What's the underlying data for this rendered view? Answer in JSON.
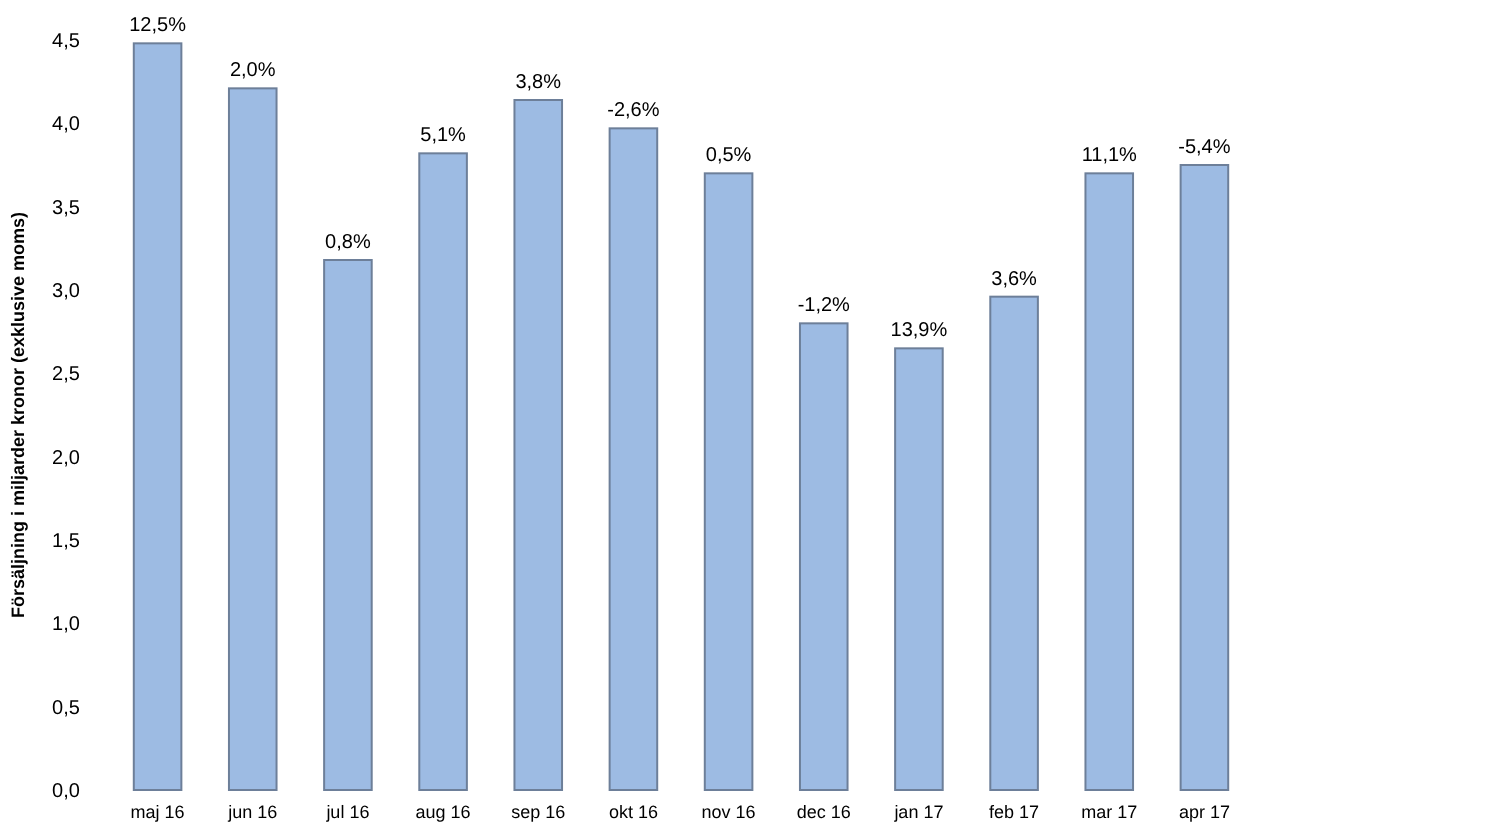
{
  "chart_data": {
    "type": "bar",
    "ylabel": "Försäljning i miljarder kronor (exklusive moms)",
    "categories": [
      "maj 16",
      "jun 16",
      "jul 16",
      "aug 16",
      "sep 16",
      "okt 16",
      "nov 16",
      "dec 16",
      "jan 17",
      "feb 17",
      "mar 17",
      "apr 17"
    ],
    "values": [
      4.48,
      4.21,
      3.18,
      3.82,
      4.14,
      3.97,
      3.7,
      2.8,
      2.65,
      2.96,
      3.7,
      3.75
    ],
    "annotations": [
      {
        "text": "12,5%",
        "x": "maj 16",
        "y": 4.48
      },
      {
        "text": "2,0%",
        "x": "jun 16",
        "y": 4.21
      },
      {
        "text": "0,8%",
        "x": "jul 16",
        "y": 3.18
      },
      {
        "text": "5,1%",
        "x": "aug 16",
        "y": 3.82
      },
      {
        "text": "3,8%",
        "x": "sep 16",
        "y": 4.14
      },
      {
        "text": "-2,6%",
        "x": "okt 16",
        "y": 3.97
      },
      {
        "text": "0,5%",
        "x": "nov 16",
        "y": 3.7
      },
      {
        "text": "-1,2%",
        "x": "dec 16",
        "y": 2.8
      },
      {
        "text": "13,9%",
        "x": "jan 17",
        "y": 2.65
      },
      {
        "text": "3,6%",
        "x": "feb 17",
        "y": 2.96
      },
      {
        "text": "11,1%",
        "x": "mar 17",
        "y": 3.7
      },
      {
        "text": "-5,4%",
        "x": "apr 17",
        "y": 3.75
      }
    ],
    "color": "#9dbbe3",
    "ylim": [
      0,
      4.5
    ],
    "yticks": [
      {
        "value": 0,
        "label": "0,0"
      },
      {
        "value": 0.5,
        "label": "0,5"
      },
      {
        "value": 1,
        "label": "1,0"
      },
      {
        "value": 1.5,
        "label": "1,5"
      },
      {
        "value": 2,
        "label": "2,0"
      },
      {
        "value": 2.5,
        "label": "2,5"
      },
      {
        "value": 3,
        "label": "3,0"
      },
      {
        "value": 3.5,
        "label": "3,5"
      },
      {
        "value": 4,
        "label": "4,0"
      },
      {
        "value": 4.5,
        "label": "4,5"
      }
    ],
    "grid": false
  }
}
